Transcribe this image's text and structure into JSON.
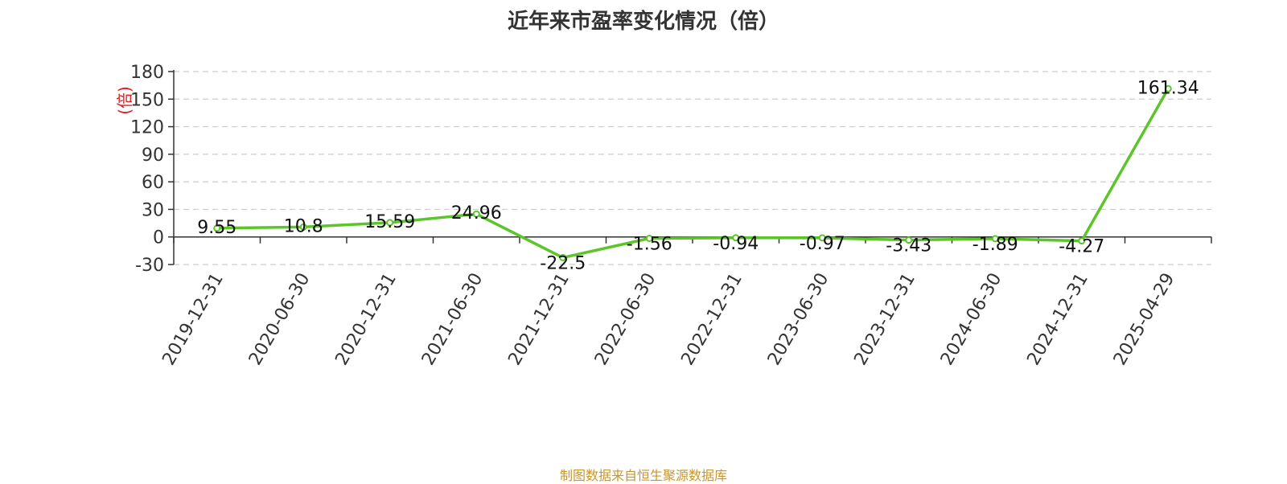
{
  "chart_data": {
    "type": "line",
    "title": "近年来市盈率变化情况（倍）",
    "ylabel": "(倍)",
    "xlabel": "",
    "categories": [
      "2019-12-31",
      "2020-06-30",
      "2020-12-31",
      "2021-06-30",
      "2021-12-31",
      "2022-06-30",
      "2022-12-31",
      "2023-06-30",
      "2023-12-31",
      "2024-06-30",
      "2024-12-31",
      "2025-04-29"
    ],
    "series": [
      {
        "values": [
          9.55,
          10.8,
          15.59,
          24.96,
          -22.5,
          -1.56,
          -0.94,
          -0.97,
          -3.43,
          -1.89,
          -4.27,
          161.34
        ]
      }
    ],
    "data_labels": [
      "9.55",
      "10.8",
      "15.59",
      "24.96",
      "-22.5",
      "-1.56",
      "-0.94",
      "-0.97",
      "-3.43",
      "-1.89",
      "-4.27",
      "161.34"
    ],
    "yticks": [
      -30,
      0,
      30,
      60,
      90,
      120,
      150,
      180
    ],
    "ylim": [
      -30,
      180
    ],
    "grid": true,
    "colors": {
      "line": "#5cc52a",
      "ylabel": "#e02020",
      "source": "#c8952a",
      "title": "#333333",
      "grid": "#cccccc"
    }
  },
  "footer": {
    "source": "制图数据来自恒生聚源数据库"
  }
}
